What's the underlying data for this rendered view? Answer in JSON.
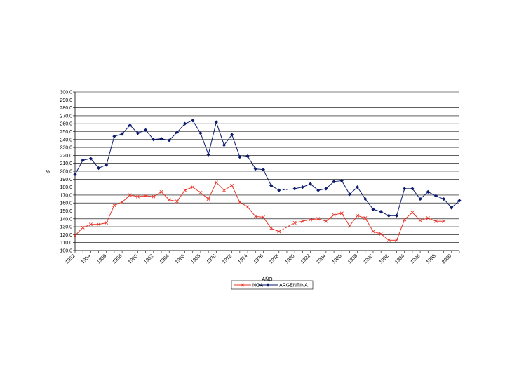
{
  "chart_data": {
    "type": "line",
    "ylabel": "%",
    "xlabel": "AÑO",
    "ylim": [
      100,
      300
    ],
    "ytick_step": 10,
    "ytick_labels": [
      "100,0",
      "110,0",
      "120,0",
      "130,0",
      "140,0",
      "150,0",
      "160,0",
      "170,0",
      "180,0",
      "190,0",
      "200,0",
      "210,0",
      "220,0",
      "230,0",
      "240,0",
      "250,0",
      "260,0",
      "270,0",
      "280,0",
      "290,0",
      "300,0"
    ],
    "xlim": [
      1952,
      2001
    ],
    "xtick_labels": [
      "1952",
      "1954",
      "1956",
      "1958",
      "1960",
      "1962",
      "1964",
      "1966",
      "1968",
      "1970",
      "1972",
      "1974",
      "1976",
      "1978",
      "1980",
      "1982",
      "1984",
      "1986",
      "1988",
      "1990",
      "1992",
      "1994",
      "1996",
      "1998",
      "2000"
    ],
    "grid": "horizontal",
    "legend_position": "bottom",
    "series": [
      {
        "name": "NOA",
        "color": "#e8362a",
        "marker": "x",
        "x": [
          1952,
          1953,
          1954,
          1955,
          1956,
          1957,
          1958,
          1959,
          1960,
          1961,
          1962,
          1963,
          1964,
          1965,
          1966,
          1967,
          1968,
          1969,
          1970,
          1971,
          1972,
          1973,
          1974,
          1975,
          1976,
          1977,
          1978,
          1980,
          1981,
          1982,
          1983,
          1984,
          1985,
          1986,
          1987,
          1988,
          1989,
          1990,
          1991,
          1992,
          1993,
          1994,
          1995,
          1996,
          1997,
          1998,
          1999
        ],
        "y": [
          119,
          129,
          133,
          133,
          135,
          157,
          161,
          170,
          168,
          169,
          168,
          174,
          164,
          162,
          176,
          180,
          173,
          165,
          186,
          176,
          182,
          161,
          155,
          143,
          142,
          128,
          124,
          135,
          137,
          139,
          140,
          137,
          145,
          147,
          131,
          144,
          141,
          124,
          121,
          113,
          113,
          139,
          148,
          138,
          141,
          137,
          137
        ]
      },
      {
        "name": "ARGENTINA",
        "color": "#0a1a6e",
        "marker": "diamond",
        "x": [
          1952,
          1953,
          1954,
          1955,
          1956,
          1957,
          1958,
          1959,
          1960,
          1961,
          1962,
          1963,
          1964,
          1965,
          1966,
          1967,
          1968,
          1969,
          1970,
          1971,
          1972,
          1973,
          1974,
          1975,
          1976,
          1977,
          1978,
          1980,
          1981,
          1982,
          1983,
          1984,
          1985,
          1986,
          1987,
          1988,
          1989,
          1990,
          1991,
          1992,
          1993,
          1994,
          1995,
          1996,
          1997,
          1998,
          1999,
          2000,
          2001
        ],
        "y": [
          196,
          214,
          216,
          204,
          208,
          244,
          247,
          258,
          248,
          252,
          240,
          241,
          239,
          249,
          260,
          264,
          248,
          221,
          262,
          233,
          246,
          218,
          219,
          203,
          202,
          182,
          176,
          178,
          180,
          184,
          176,
          178,
          187,
          188,
          171,
          180,
          165,
          152,
          149,
          144,
          144,
          178,
          178,
          165,
          174,
          169,
          165,
          154,
          163
        ]
      }
    ]
  }
}
